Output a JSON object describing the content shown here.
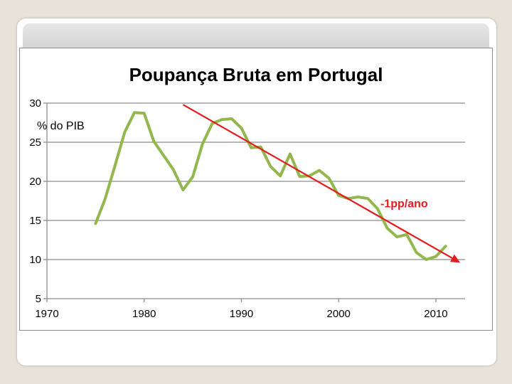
{
  "chart_data": {
    "type": "line",
    "title": "Poupança Bruta em Portugal",
    "ylabel": "% do PIB",
    "xlabel": "",
    "xlim": [
      1970,
      2013
    ],
    "ylim": [
      5,
      30
    ],
    "xticks": [
      1970,
      1980,
      1990,
      2000,
      2010
    ],
    "yticks": [
      5,
      10,
      15,
      20,
      25,
      30
    ],
    "grid": "horizontal",
    "series": [
      {
        "color": "#92b74d",
        "x": [
          1975,
          1976,
          1977,
          1978,
          1979,
          1980,
          1981,
          1982,
          1983,
          1984,
          1985,
          1986,
          1987,
          1988,
          1989,
          1990,
          1991,
          1992,
          1993,
          1994,
          1995,
          1996,
          1997,
          1998,
          1999,
          2000,
          2001,
          2002,
          2003,
          2004,
          2005,
          2006,
          2007,
          2008,
          2009,
          2010,
          2011
        ],
        "y": [
          14.6,
          17.8,
          22.0,
          26.3,
          28.8,
          28.7,
          25.1,
          23.3,
          21.5,
          18.9,
          20.6,
          24.8,
          27.4,
          27.9,
          28.0,
          26.8,
          24.3,
          24.4,
          21.9,
          20.7,
          23.5,
          20.6,
          20.7,
          21.4,
          20.4,
          18.2,
          17.8,
          18.0,
          17.8,
          16.5,
          14.0,
          12.9,
          13.2,
          10.9,
          10.0,
          10.4,
          11.7
        ]
      }
    ],
    "trend": {
      "color": "#e31d1d",
      "x": [
        1984,
        2012.5
      ],
      "y": [
        29.8,
        9.6
      ]
    },
    "annotations": [
      {
        "text": "-1pp/ano",
        "x": 2004.3,
        "y": 16.7
      }
    ]
  }
}
